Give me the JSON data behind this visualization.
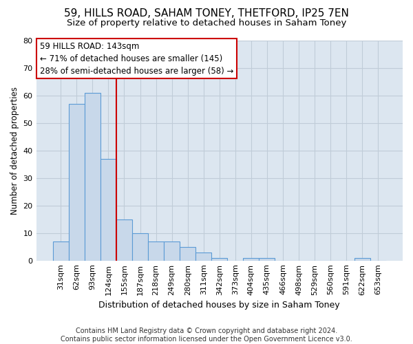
{
  "title1": "59, HILLS ROAD, SAHAM TONEY, THETFORD, IP25 7EN",
  "title2": "Size of property relative to detached houses in Saham Toney",
  "xlabel": "Distribution of detached houses by size in Saham Toney",
  "ylabel": "Number of detached properties",
  "categories": [
    "31sqm",
    "62sqm",
    "93sqm",
    "124sqm",
    "155sqm",
    "187sqm",
    "218sqm",
    "249sqm",
    "280sqm",
    "311sqm",
    "342sqm",
    "373sqm",
    "404sqm",
    "435sqm",
    "466sqm",
    "498sqm",
    "529sqm",
    "560sqm",
    "591sqm",
    "622sqm",
    "653sqm"
  ],
  "values": [
    7,
    57,
    61,
    37,
    15,
    10,
    7,
    7,
    5,
    3,
    1,
    0,
    1,
    1,
    0,
    0,
    0,
    0,
    0,
    1,
    0
  ],
  "bar_color": "#c8d8ea",
  "bar_edge_color": "#5b9bd5",
  "ylim": [
    0,
    80
  ],
  "yticks": [
    0,
    10,
    20,
    30,
    40,
    50,
    60,
    70,
    80
  ],
  "annotation_line1": "59 HILLS ROAD: 143sqm",
  "annotation_line2": "← 71% of detached houses are smaller (145)",
  "annotation_line3": "28% of semi-detached houses are larger (58) →",
  "vline_x": 3.5,
  "vline_color": "#cc0000",
  "box_edge_color": "#cc0000",
  "footer": "Contains HM Land Registry data © Crown copyright and database right 2024.\nContains public sector information licensed under the Open Government Licence v3.0.",
  "background_color": "#ffffff",
  "plot_bg_color": "#dce6f0",
  "grid_color": "#c0ccd8",
  "title1_fontsize": 11,
  "title2_fontsize": 9.5,
  "xlabel_fontsize": 9,
  "ylabel_fontsize": 8.5,
  "footer_fontsize": 7,
  "tick_fontsize": 8,
  "annot_fontsize": 8.5
}
